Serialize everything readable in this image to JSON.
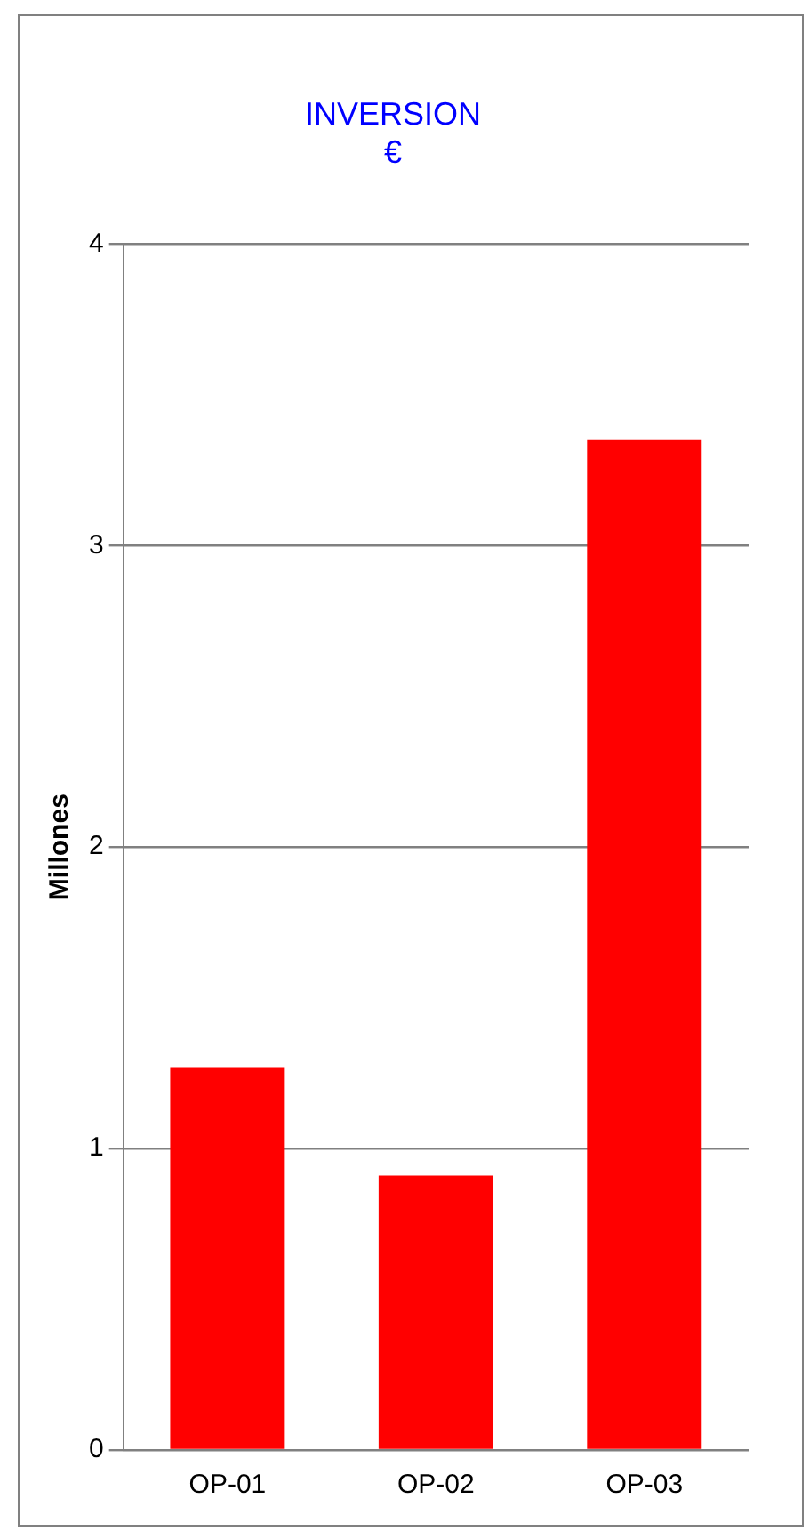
{
  "chart_data": {
    "type": "bar",
    "title": [
      "INVERSION",
      "€"
    ],
    "ylabel": "Millones",
    "categories": [
      "OP-01",
      "OP-02",
      "OP-03"
    ],
    "values": [
      1.27,
      0.91,
      3.35
    ],
    "color": "#ff0000",
    "ylim": [
      0,
      4
    ],
    "yticks": [
      0,
      1,
      2,
      3,
      4
    ],
    "grid": "y"
  }
}
